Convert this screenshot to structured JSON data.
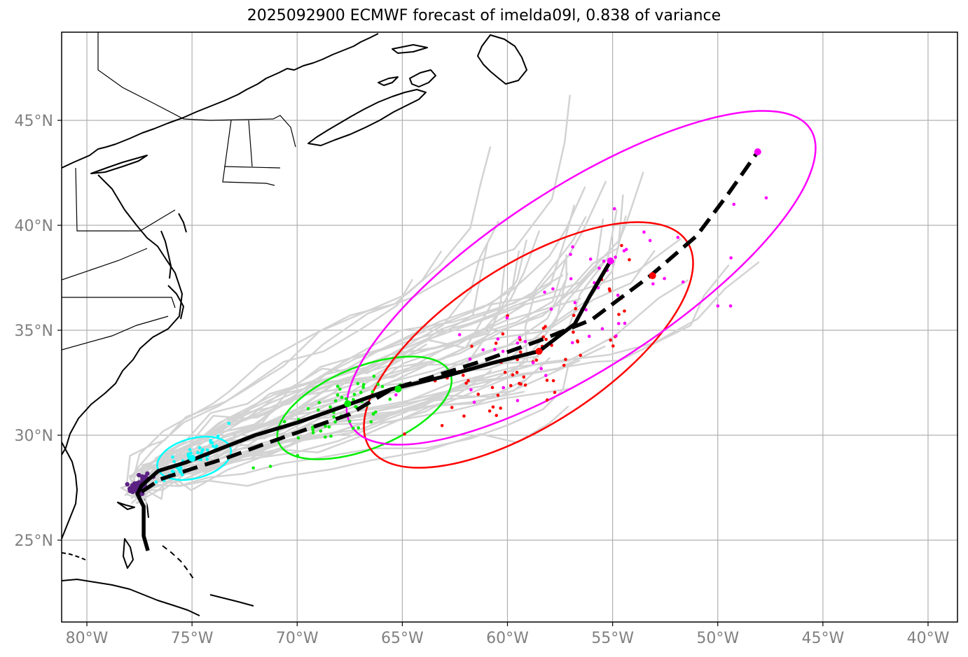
{
  "title": "2025092900 ECMWF forecast of imelda09l, 0.838 of variance",
  "axes": {
    "lon_range": [
      -81.2,
      -38.6
    ],
    "lat_range": [
      21.1,
      49.2
    ],
    "x_ticks": [
      "80°W",
      "75°W",
      "70°W",
      "65°W",
      "60°W",
      "55°W",
      "50°W",
      "45°W",
      "40°W"
    ],
    "y_ticks": [
      "25°N",
      "30°N",
      "35°N",
      "40°N",
      "45°N"
    ],
    "grid": true
  },
  "colors": {
    "ensemble_tracks": "#d3d3d3",
    "initial_cluster": "#5b2283",
    "day1": "#00ffff",
    "day2": "#00ee00",
    "day3": "#ff0000",
    "day4": "#ff00ff",
    "coast": "#000000",
    "grid": "#b0b0b0"
  },
  "chart_data": {
    "type": "scatter",
    "mean_track_solid": [
      [
        -77.1,
        24.5
      ],
      [
        -77.3,
        25.2
      ],
      [
        -77.3,
        26.6
      ],
      [
        -77.6,
        27.2
      ],
      [
        -77.4,
        27.6
      ],
      [
        -76.6,
        28.3
      ],
      [
        -75.3,
        28.7
      ],
      [
        -73.8,
        29.3
      ],
      [
        -72.0,
        30.0
      ],
      [
        -70.0,
        30.6
      ],
      [
        -68.0,
        31.3
      ],
      [
        -65.5,
        32.2
      ],
      [
        -63.0,
        32.8
      ],
      [
        -60.5,
        33.5
      ],
      [
        -58.5,
        34.0
      ],
      [
        -56.8,
        35.3
      ],
      [
        -56.1,
        36.6
      ],
      [
        -55.1,
        38.3
      ]
    ],
    "mean_track_dashed": [
      [
        -77.4,
        27.3
      ],
      [
        -76.5,
        27.9
      ],
      [
        -75.0,
        28.4
      ],
      [
        -73.4,
        28.9
      ],
      [
        -71.5,
        29.6
      ],
      [
        -69.5,
        30.3
      ],
      [
        -67.5,
        31.0
      ],
      [
        -65.5,
        32.2
      ],
      [
        -63.5,
        32.8
      ],
      [
        -61.0,
        33.6
      ],
      [
        -58.5,
        34.5
      ],
      [
        -56.0,
        35.5
      ],
      [
        -53.2,
        37.6
      ],
      [
        -51.0,
        39.5
      ],
      [
        -49.5,
        41.5
      ],
      [
        -48.1,
        43.5
      ]
    ],
    "ellipses": [
      {
        "center": [
          -74.9,
          28.9
        ],
        "a": 1.8,
        "b": 0.95,
        "angle": 15,
        "color": "#00ffff"
      },
      {
        "center": [
          -66.8,
          31.3
        ],
        "a": 4.4,
        "b": 1.95,
        "angle": 22,
        "color": "#00ee00"
      },
      {
        "center": [
          -59.0,
          34.3
        ],
        "a": 9.0,
        "b": 3.8,
        "angle": 33,
        "color": "#ff0000"
      },
      {
        "center": [
          -56.5,
          37.5
        ],
        "a": 13.0,
        "b": 4.3,
        "angle": 33,
        "color": "#ff00ff"
      }
    ],
    "marker_points": [
      {
        "lon": -75.0,
        "lat": 28.9,
        "color": "#00ffff"
      },
      {
        "lon": -67.6,
        "lat": 31.5,
        "color": "#00ee00"
      },
      {
        "lon": -65.2,
        "lat": 32.2,
        "color": "#00ee00"
      },
      {
        "lon": -58.5,
        "lat": 34.0,
        "color": "#ff0000"
      },
      {
        "lon": -53.1,
        "lat": 37.6,
        "color": "#ff0000"
      },
      {
        "lon": -55.1,
        "lat": 38.3,
        "color": "#ff00ff"
      },
      {
        "lon": -48.1,
        "lat": 43.5,
        "color": "#ff00ff"
      }
    ],
    "scatter_groups": [
      {
        "name": "initial",
        "color": "#5b2283",
        "center": [
          -77.5,
          27.6
        ],
        "spread": [
          0.5,
          0.4
        ],
        "count": 55,
        "seed": 3
      },
      {
        "name": "day1",
        "color": "#00ffff",
        "center": [
          -74.9,
          29.0
        ],
        "spread": [
          1.3,
          0.6
        ],
        "count": 45,
        "seed": 11
      },
      {
        "name": "day2",
        "color": "#00ee00",
        "center": [
          -67.5,
          31.2
        ],
        "spread": [
          2.7,
          1.2
        ],
        "count": 55,
        "seed": 21
      },
      {
        "name": "day3",
        "color": "#ff0000",
        "center": [
          -59.0,
          33.5
        ],
        "spread": [
          5.0,
          2.3
        ],
        "count": 65,
        "seed": 31
      },
      {
        "name": "day4",
        "color": "#ff00ff",
        "center": [
          -55.0,
          37.0
        ],
        "spread": [
          8.0,
          2.8
        ],
        "count": 55,
        "seed": 41
      }
    ]
  }
}
